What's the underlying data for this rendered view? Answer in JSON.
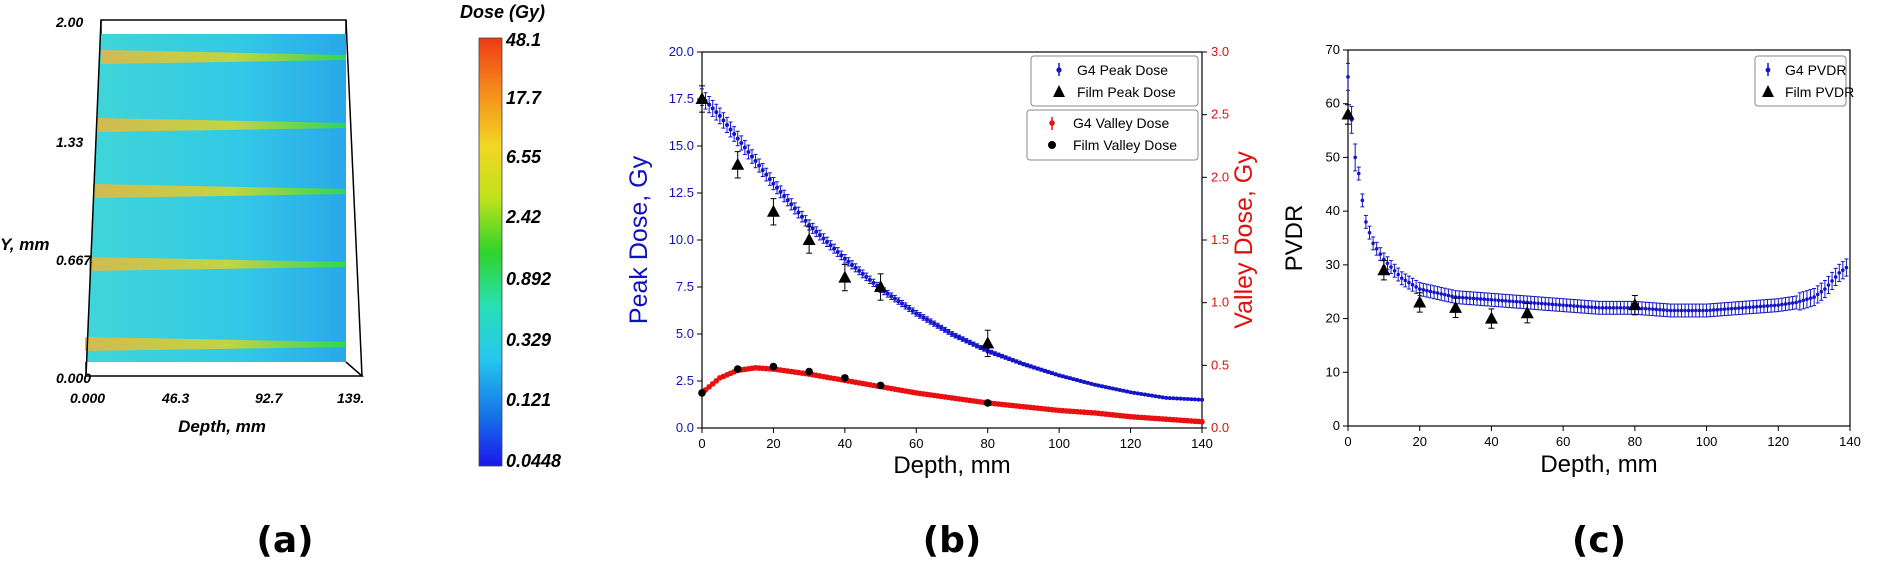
{
  "panel_labels": [
    "(a)",
    "(b)",
    "(c)"
  ],
  "chart_data": [
    {
      "type": "heatmap",
      "panel": "(a)",
      "title": "Dose (Gy)",
      "xlabel": "Depth, mm",
      "ylabel": "Y, mm",
      "xticks": [
        "0.000",
        "46.3",
        "92.7",
        "139."
      ],
      "yticks": [
        "0.000",
        "0.667",
        "1.33",
        "2.00"
      ],
      "colorbar_ticks": [
        "48.1",
        "17.7",
        "6.55",
        "2.42",
        "0.892",
        "0.329",
        "0.121",
        "0.0448"
      ],
      "colorbar_colors": [
        "#ee3a14",
        "#f58c1c",
        "#f3d522",
        "#bfe21c",
        "#2fd32a",
        "#27e0b4",
        "#27c7ee",
        "#1578e8",
        "#1a16ec"
      ],
      "background_color": "#37cfe0",
      "peak_color": "#d8c035",
      "peak_count": 5
    },
    {
      "type": "scatter",
      "panel": "(b)",
      "xlabel": "Depth, mm",
      "ylabel": "Peak Dose, Gy",
      "ylabel_right": "Valley Dose, Gy",
      "xlim": [
        0,
        140
      ],
      "ylim": [
        0,
        20
      ],
      "ylim_right": [
        0,
        3
      ],
      "xticks": [
        "0",
        "20",
        "40",
        "60",
        "80",
        "100",
        "120",
        "140"
      ],
      "yticks": [
        "0.0",
        "2.5",
        "5.0",
        "7.5",
        "10.0",
        "12.5",
        "15.0",
        "17.5",
        "20.0"
      ],
      "yticks_right": [
        "0.0",
        "0.5",
        "1.0",
        "1.5",
        "2.0",
        "2.5",
        "3.0"
      ],
      "left_color": "#1010c0",
      "right_color": "#e01010",
      "legend_top": [
        "G4 Peak Dose",
        "Film Peak Dose"
      ],
      "legend_bottom": [
        "G4 Valley Dose",
        "Film Valley Dose"
      ],
      "series": [
        {
          "name": "G4 Peak Dose",
          "axis": "left",
          "color": "#1414c8",
          "x": [
            0,
            5,
            10,
            15,
            20,
            30,
            40,
            50,
            60,
            70,
            80,
            90,
            100,
            110,
            120,
            130,
            140
          ],
          "values": [
            17.6,
            16.6,
            15.4,
            14.2,
            13.0,
            10.8,
            9.0,
            7.4,
            6.1,
            5.0,
            4.1,
            3.4,
            2.8,
            2.3,
            1.9,
            1.6,
            1.5
          ]
        },
        {
          "name": "Film Peak Dose",
          "axis": "left",
          "color": "#000000",
          "x": [
            0,
            10,
            20,
            30,
            40,
            50,
            80
          ],
          "values": [
            17.5,
            14.0,
            11.5,
            10.0,
            8.0,
            7.5,
            4.5
          ]
        },
        {
          "name": "G4 Valley Dose",
          "axis": "right",
          "color": "#e81010",
          "x": [
            0,
            5,
            10,
            15,
            20,
            30,
            40,
            50,
            60,
            70,
            80,
            90,
            100,
            110,
            120,
            130,
            140
          ],
          "values": [
            0.28,
            0.4,
            0.46,
            0.48,
            0.47,
            0.43,
            0.38,
            0.33,
            0.28,
            0.24,
            0.2,
            0.17,
            0.14,
            0.12,
            0.09,
            0.07,
            0.05
          ]
        },
        {
          "name": "Film Valley Dose",
          "axis": "right",
          "color": "#000000",
          "x": [
            0,
            10,
            20,
            30,
            40,
            50,
            80
          ],
          "values": [
            0.28,
            0.47,
            0.49,
            0.45,
            0.4,
            0.34,
            0.2
          ]
        }
      ]
    },
    {
      "type": "scatter",
      "panel": "(c)",
      "xlabel": "Depth, mm",
      "ylabel": "PVDR",
      "xlim": [
        0,
        140
      ],
      "ylim": [
        0,
        70
      ],
      "xticks": [
        "0",
        "20",
        "40",
        "60",
        "80",
        "100",
        "120",
        "140"
      ],
      "yticks": [
        "0",
        "10",
        "20",
        "30",
        "40",
        "50",
        "60",
        "70"
      ],
      "legend": [
        "G4 PVDR",
        "Film PVDR"
      ],
      "series": [
        {
          "name": "G4 PVDR",
          "color": "#1414c8",
          "x": [
            0,
            0.5,
            1,
            2,
            3,
            4,
            5,
            7,
            10,
            15,
            20,
            30,
            40,
            50,
            60,
            70,
            80,
            90,
            100,
            110,
            120,
            125,
            130,
            133,
            135,
            137,
            139
          ],
          "values": [
            65,
            60,
            57,
            50,
            47,
            42,
            38,
            34,
            31,
            27.5,
            25.5,
            24,
            23.5,
            23,
            22.5,
            22,
            22,
            21.5,
            21.5,
            22,
            22.5,
            23,
            24,
            25.5,
            27,
            28.5,
            29.5
          ]
        },
        {
          "name": "Film PVDR",
          "color": "#000000",
          "x": [
            0,
            10,
            20,
            30,
            40,
            50,
            80
          ],
          "values": [
            58,
            29,
            23,
            22,
            20,
            21,
            22.5
          ]
        }
      ]
    }
  ]
}
